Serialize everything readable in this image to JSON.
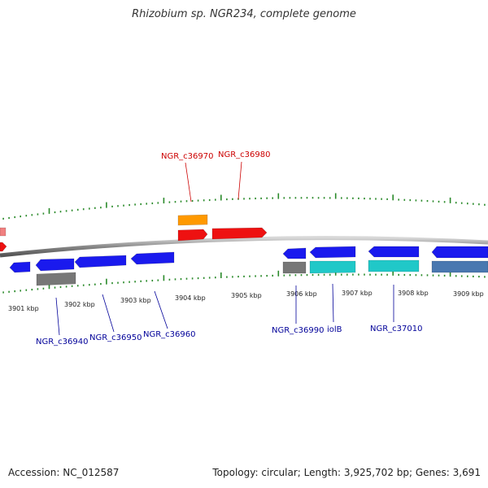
{
  "title": "Rhizobium sp. NGR234, complete genome",
  "footer": {
    "accession": "Accession: NC_012587",
    "topology": "Topology: circular; Length: 3,925,702 bp; Genes: 3,691"
  },
  "colors": {
    "strand_plus": "#ee1111",
    "strand_plus_light": "#f08080",
    "strand_minus": "#1a1aee",
    "pseudo": "#777777",
    "rna": "#ff9900",
    "cyan_feature": "#20c8c8",
    "steel_feature": "#4a78b0",
    "ticks": "#2a8a2a",
    "plus_label": "#cc0000",
    "minus_label": "#000099"
  },
  "ticks": [
    "3901 kbp",
    "3902 kbp",
    "3903 kbp",
    "3904 kbp",
    "3905 kbp",
    "3906 kbp",
    "3907 kbp",
    "3908 kbp",
    "3909 kbp"
  ],
  "labels_top": [
    "NGR_c36970",
    "NGR_c36980"
  ],
  "labels_bottom": [
    "NGR_c36940",
    "NGR_c36950",
    "NGR_c36960",
    "NGR_c36990",
    "iolB",
    "NGR_c37010"
  ]
}
